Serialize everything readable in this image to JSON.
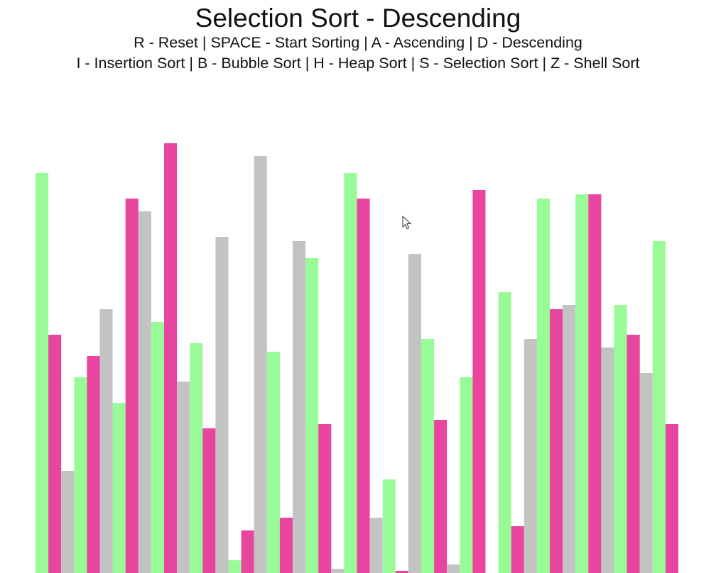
{
  "title": "Selection Sort - Descending",
  "help_line_1": "R - Reset | SPACE - Start Sorting | A - Ascending | D - Descending",
  "help_line_2": "I - Insertion Sort | B - Bubble Sort | H - Heap Sort | S - Selection Sort | Z - Shell Sort",
  "colors": {
    "green": "#98fb98",
    "pink": "#e8459f",
    "gray": "#c3c3c3"
  },
  "chart_data": {
    "type": "bar",
    "max_value": 100,
    "values": [
      [
        94,
        "green"
      ],
      [
        56,
        "pink"
      ],
      [
        24,
        "gray"
      ],
      [
        46,
        "green"
      ],
      [
        51,
        "pink"
      ],
      [
        62,
        "gray"
      ],
      [
        40,
        "green"
      ],
      [
        88,
        "pink"
      ],
      [
        85,
        "gray"
      ],
      [
        59,
        "green"
      ],
      [
        101,
        "pink"
      ],
      [
        45,
        "gray"
      ],
      [
        54,
        "green"
      ],
      [
        34,
        "pink"
      ],
      [
        79,
        "gray"
      ],
      [
        3,
        "green"
      ],
      [
        10,
        "pink"
      ],
      [
        98,
        "gray"
      ],
      [
        52,
        "green"
      ],
      [
        13,
        "pink"
      ],
      [
        78,
        "gray"
      ],
      [
        74,
        "green"
      ],
      [
        35,
        "pink"
      ],
      [
        1,
        "gray"
      ],
      [
        94,
        "green"
      ],
      [
        88,
        "pink"
      ],
      [
        13,
        "gray"
      ],
      [
        22,
        "green"
      ],
      [
        0.5,
        "pink"
      ],
      [
        75,
        "gray"
      ],
      [
        55,
        "green"
      ],
      [
        36,
        "pink"
      ],
      [
        2,
        "gray"
      ],
      [
        46,
        "green"
      ],
      [
        90,
        "pink"
      ],
      [
        0,
        "none"
      ],
      [
        66,
        "green"
      ],
      [
        11,
        "pink"
      ],
      [
        55,
        "gray"
      ],
      [
        88,
        "green"
      ],
      [
        62,
        "pink"
      ],
      [
        63,
        "gray"
      ],
      [
        89,
        "green"
      ],
      [
        89,
        "pink"
      ],
      [
        53,
        "gray"
      ],
      [
        63,
        "green"
      ],
      [
        56,
        "pink"
      ],
      [
        47,
        "gray"
      ],
      [
        78,
        "green"
      ],
      [
        35,
        "pink"
      ]
    ]
  }
}
